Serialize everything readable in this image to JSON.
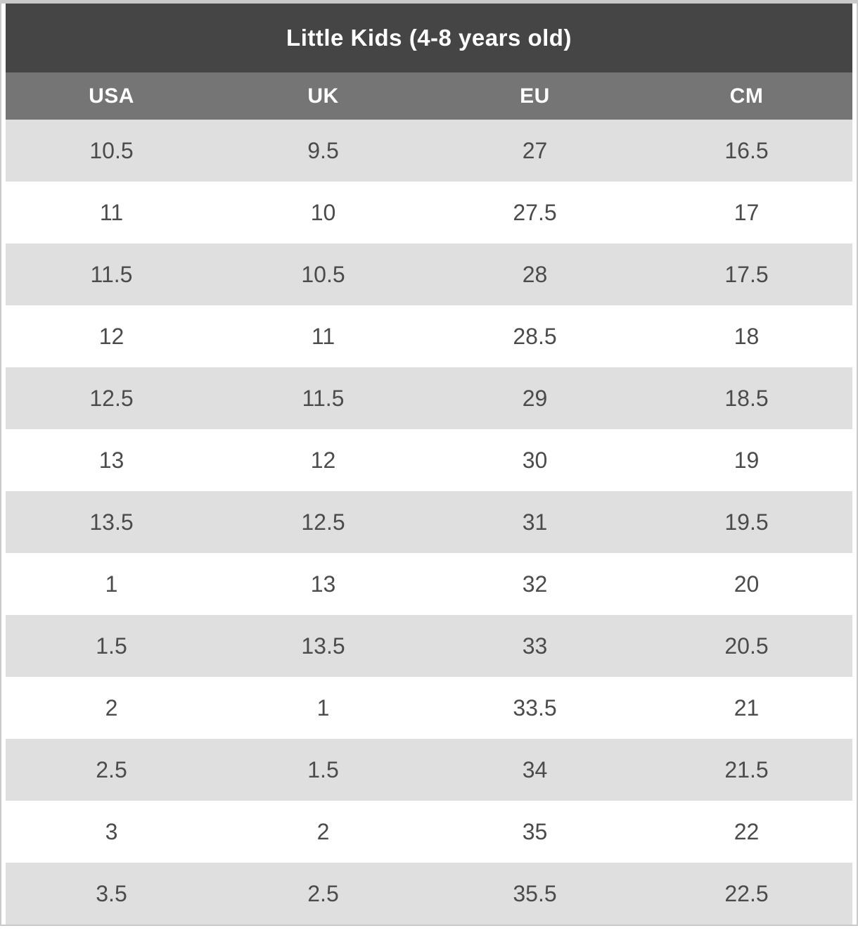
{
  "chart_data": {
    "type": "table",
    "title": "Little Kids (4-8 years old)",
    "columns": [
      "USA",
      "UK",
      "EU",
      "CM"
    ],
    "rows": [
      [
        "10.5",
        "9.5",
        "27",
        "16.5"
      ],
      [
        "11",
        "10",
        "27.5",
        "17"
      ],
      [
        "11.5",
        "10.5",
        "28",
        "17.5"
      ],
      [
        "12",
        "11",
        "28.5",
        "18"
      ],
      [
        "12.5",
        "11.5",
        "29",
        "18.5"
      ],
      [
        "13",
        "12",
        "30",
        "19"
      ],
      [
        "13.5",
        "12.5",
        "31",
        "19.5"
      ],
      [
        "1",
        "13",
        "32",
        "20"
      ],
      [
        "1.5",
        "13.5",
        "33",
        "20.5"
      ],
      [
        "2",
        "1",
        "33.5",
        "21"
      ],
      [
        "2.5",
        "1.5",
        "34",
        "21.5"
      ],
      [
        "3",
        "2",
        "35",
        "22"
      ],
      [
        "3.5",
        "2.5",
        "35.5",
        "22.5"
      ]
    ],
    "legend": "none",
    "grid": "off"
  },
  "colors": {
    "title_bg": "#454545",
    "header_bg": "#757575",
    "row_alt_bg": "#dfdfdf",
    "row_bg": "#ffffff",
    "text": "#4b4b4b",
    "header_text": "#ffffff",
    "border": "#c9c9c9"
  }
}
